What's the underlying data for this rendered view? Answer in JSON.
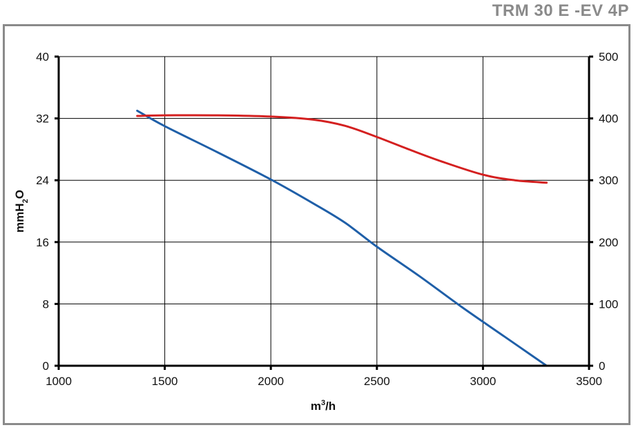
{
  "title": "TRM 30 E -EV 4P",
  "chart_data": {
    "type": "line",
    "title": "TRM 30 E -EV 4P",
    "xlabel_base": "m",
    "xlabel_sup": "3",
    "xlabel_tail": "/h",
    "ylabel_base": "mmH",
    "ylabel_sub": "2",
    "ylabel_tail": "O",
    "xlim": [
      1000,
      3500
    ],
    "ylim": [
      0,
      40
    ],
    "y2lim": [
      0,
      500
    ],
    "xticks": [
      1000,
      1500,
      2000,
      2500,
      3000,
      3500
    ],
    "yticks": [
      0,
      8,
      16,
      24,
      32,
      40
    ],
    "y2ticks": [
      0,
      100,
      200,
      300,
      400,
      500
    ],
    "grid": true,
    "series": [
      {
        "axis": "left",
        "color": "#1f5fa8",
        "x": [
          1370,
          1500,
          1750,
          2000,
          2200,
          2350,
          2500,
          2700,
          2900,
          3100,
          3300
        ],
        "y": [
          33.0,
          31.0,
          27.6,
          24.1,
          21.0,
          18.5,
          15.4,
          11.6,
          7.6,
          3.8,
          0.0
        ]
      },
      {
        "axis": "right",
        "color": "#d42020",
        "x": [
          1370,
          1500,
          1750,
          2000,
          2200,
          2350,
          2500,
          2650,
          2800,
          3000,
          3150,
          3300
        ],
        "y": [
          404,
          405,
          405,
          403,
          398,
          388,
          370,
          350,
          331,
          309,
          300,
          296
        ]
      }
    ]
  }
}
